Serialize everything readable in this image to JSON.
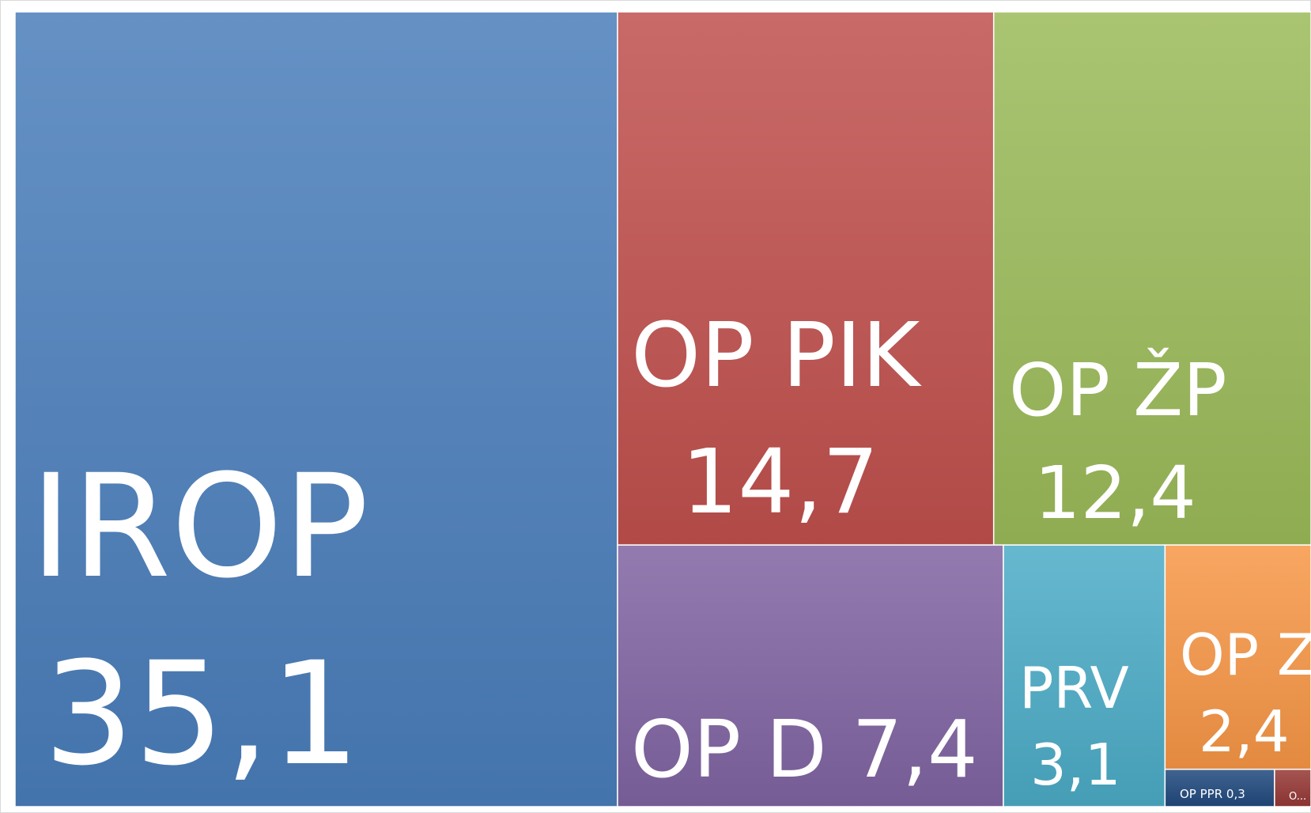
{
  "chart_data": {
    "type": "treemap",
    "categories": [
      "IROP",
      "OP PIK",
      "OP ŽP",
      "OP D",
      "PRV",
      "OP Z",
      "OP PPR",
      "O..."
    ],
    "values": [
      35.1,
      14.7,
      12.4,
      7.4,
      3.1,
      2.4,
      0.3,
      0.1
    ],
    "value_labels": [
      "35,1",
      "14,7",
      "12,4",
      "7,4",
      "3,1",
      "2,4",
      "0,3",
      null
    ],
    "colors": [
      "#4a7ebb",
      "#c0504d",
      "#9bbb59",
      "#8064a2",
      "#4bacc6",
      "#f79646",
      "#1f497d",
      "#953735"
    ]
  }
}
